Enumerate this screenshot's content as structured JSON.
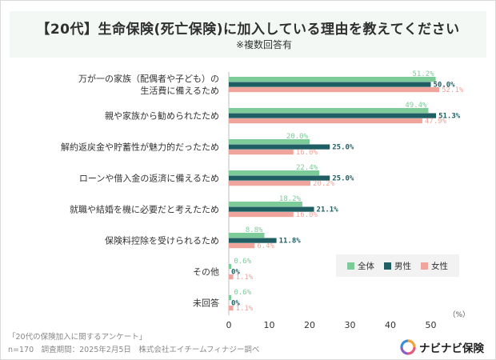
{
  "header": {
    "title": "【20代】生命保険(死亡保険)に加入している理由を教えてください",
    "subtitle": "※複数回答有"
  },
  "footer": {
    "survey_name": "「20代の保険加入に関するアンケート」",
    "survey_meta": "n=170　調査期間：2025年2月5日　株式会社エイチームフィナジー調べ",
    "logo_text": "ナビナビ保険"
  },
  "colors": {
    "all": "#7ccb98",
    "male": "#1f5e63",
    "female": "#f0a59c"
  },
  "chart_data": {
    "type": "bar",
    "orientation": "horizontal",
    "categories": [
      [
        "万が一の家族（配偶者や子ども）の",
        "生活費に備えるため"
      ],
      [
        "親や家族から勧められたため"
      ],
      [
        "解約返戻金や貯蓄性が魅力的だったため"
      ],
      [
        "ローンや借入金の返済に備えるため"
      ],
      [
        "就職や結婚を機に必要だと考えたため"
      ],
      [
        "保険料控除を受けられるため"
      ],
      [
        "その他"
      ],
      [
        "未回答"
      ]
    ],
    "series": [
      {
        "name": "全体",
        "values": [
          51.2,
          49.4,
          20.0,
          22.4,
          18.2,
          8.8,
          0.6,
          0.6
        ],
        "labels": [
          "51.2%",
          "49.4%",
          "20.0%",
          "22.4%",
          "18.2%",
          "8.8%",
          "0.6%",
          "0.6%"
        ]
      },
      {
        "name": "男性",
        "values": [
          50.0,
          51.3,
          25.0,
          25.0,
          21.1,
          11.8,
          0,
          0
        ],
        "labels": [
          "50.0%",
          "51.3%",
          "25.0%",
          "25.0%",
          "21.1%",
          "11.8%",
          "0%",
          "0%"
        ]
      },
      {
        "name": "女性",
        "values": [
          52.1,
          47.9,
          16.0,
          20.2,
          16.0,
          6.4,
          1.1,
          1.1
        ],
        "labels": [
          "52.1%",
          "47.9%",
          "16.0%",
          "20.2%",
          "16.0%",
          "6.4%",
          "1.1%",
          "1.1%"
        ]
      }
    ],
    "xticks": [
      "0",
      "10",
      "20",
      "30",
      "40",
      "50"
    ],
    "xlim": [
      0,
      55
    ],
    "xunit": "（%）",
    "legend_position": "bottom-right"
  }
}
